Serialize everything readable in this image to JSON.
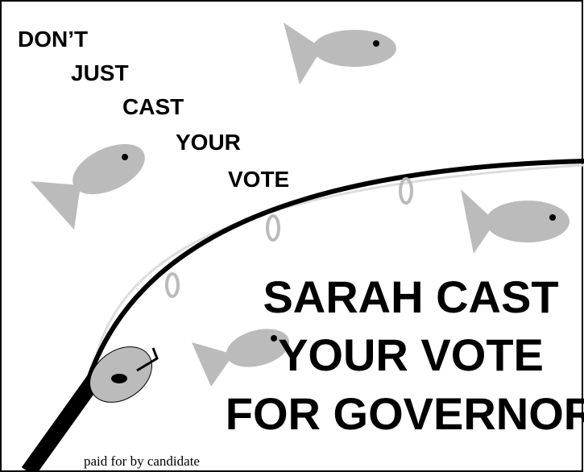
{
  "tagline": [
    "DON’T",
    "JUST",
    "CAST",
    "YOUR",
    "VOTE"
  ],
  "headline": [
    "SARAH CAST",
    "YOUR VOTE",
    "FOR GOVERNOR"
  ],
  "disclaimer": "paid for by candidate"
}
